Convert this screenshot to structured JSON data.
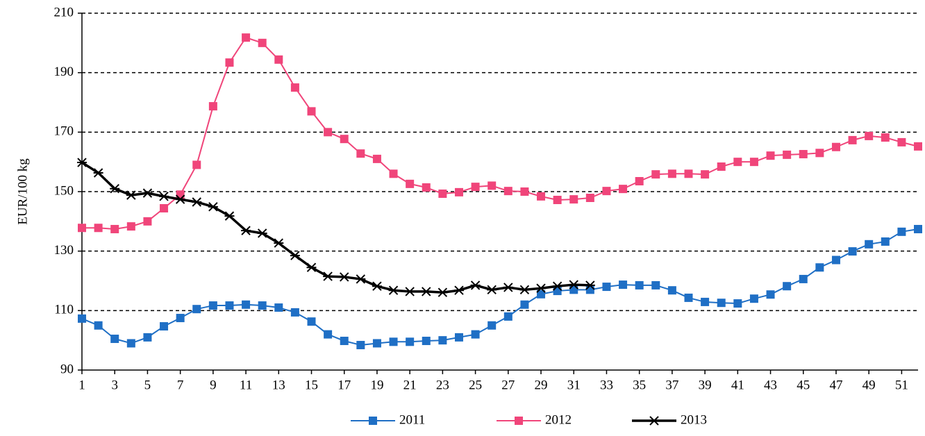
{
  "chart_data": {
    "type": "line",
    "ylabel": "EUR/100 kg",
    "x": [
      1,
      2,
      3,
      4,
      5,
      6,
      7,
      8,
      9,
      10,
      11,
      12,
      13,
      14,
      15,
      16,
      17,
      18,
      19,
      20,
      21,
      22,
      23,
      24,
      25,
      26,
      27,
      28,
      29,
      30,
      31,
      32,
      33,
      34,
      35,
      36,
      37,
      38,
      39,
      40,
      41,
      42,
      43,
      44,
      45,
      46,
      47,
      48,
      49,
      50,
      51,
      52
    ],
    "xlim": [
      1,
      52
    ],
    "xticks": [
      1,
      3,
      5,
      7,
      9,
      11,
      13,
      15,
      17,
      19,
      21,
      23,
      25,
      27,
      29,
      31,
      33,
      35,
      37,
      39,
      41,
      43,
      45,
      47,
      49,
      51
    ],
    "ylim": [
      90,
      210
    ],
    "yticks": [
      90,
      110,
      130,
      150,
      170,
      190,
      210
    ],
    "grid": true,
    "legend": "bottom",
    "series": [
      {
        "name": "2011",
        "color": "#1f6fc5",
        "marker": "square",
        "values": [
          107.3,
          105,
          100.5,
          99,
          101,
          104.7,
          107.5,
          110.5,
          111.7,
          111.7,
          112,
          111.7,
          111,
          109.4,
          106.3,
          102,
          99.8,
          98.4,
          99,
          99.5,
          99.5,
          99.8,
          100,
          101,
          102,
          105,
          108,
          112,
          115.5,
          116.6,
          117,
          117,
          118,
          118.7,
          118.5,
          118.5,
          116.8,
          114.3,
          112.9,
          112.6,
          112.4,
          114,
          115.4,
          118.2,
          120.6,
          124.5,
          127,
          129.9,
          132.3,
          133.2,
          136.5,
          137.4
        ]
      },
      {
        "name": "2012",
        "color": "#f0457a",
        "marker": "square",
        "values": [
          137.8,
          137.8,
          137.4,
          138.3,
          140,
          144.4,
          149,
          159,
          178.7,
          193.4,
          201.8,
          200,
          194.4,
          185,
          177,
          170,
          167.7,
          162.8,
          161,
          156,
          152.6,
          151.4,
          149.3,
          149.8,
          151.6,
          152,
          150.2,
          150,
          148.4,
          147.2,
          147.4,
          147.9,
          150.2,
          150.9,
          153.5,
          155.8,
          156,
          156,
          155.8,
          158.4,
          160,
          160,
          162.1,
          162.4,
          162.6,
          163,
          165,
          167.3,
          168.7,
          168.2,
          166.6,
          165.2
        ]
      },
      {
        "name": "2013",
        "color": "#000000",
        "marker": "star",
        "values": [
          159.8,
          156.3,
          151,
          148.8,
          149.5,
          148.4,
          147.4,
          146.5,
          144.9,
          141.8,
          136.9,
          136,
          132.7,
          128.5,
          124.5,
          121.5,
          121.3,
          120.6,
          118.2,
          116.8,
          116.4,
          116.4,
          116.1,
          116.8,
          118.5,
          117,
          117.8,
          117,
          117.5,
          118.2,
          118.7,
          118.5,
          null,
          null,
          null,
          null,
          null,
          null,
          null,
          null,
          null,
          null,
          null,
          null,
          null,
          null,
          null,
          null,
          null,
          null,
          null,
          null
        ]
      }
    ]
  }
}
